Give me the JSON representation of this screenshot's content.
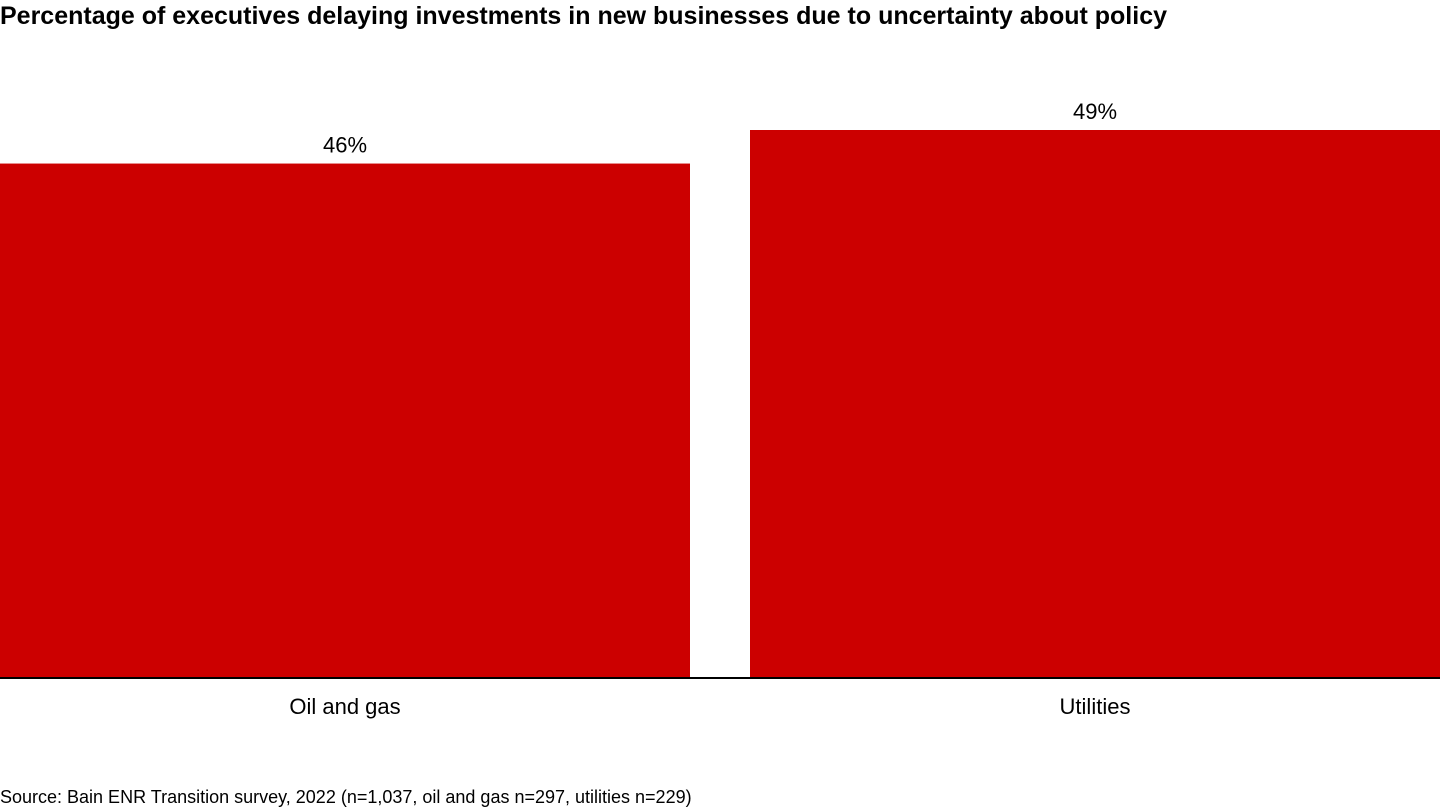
{
  "chart_data": {
    "type": "bar",
    "title": "Percentage of executives delaying investments in new businesses due to uncertainty about policy",
    "categories": [
      "Oil and gas",
      "Utilities"
    ],
    "values": [
      46,
      49
    ],
    "data_labels": [
      "46%",
      "49%"
    ],
    "unit": "%",
    "ylim": [
      0,
      49
    ],
    "xlabel": "",
    "ylabel": "",
    "grid": false,
    "legend": "none",
    "bar_color": "#cc0000"
  },
  "source": "Source: Bain ENR Transition survey, 2022 (n=1,037, oil and gas n=297, utilities n=229)"
}
